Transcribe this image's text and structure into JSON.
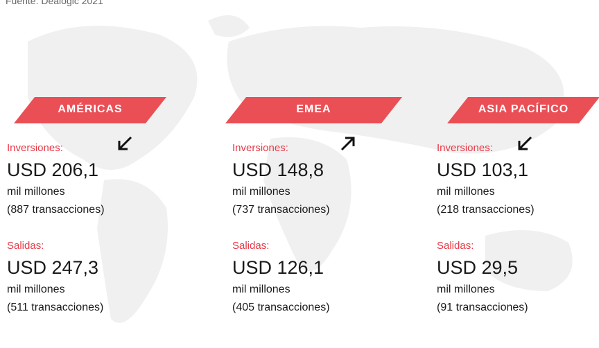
{
  "source": "Fuente: Dealogic 2021",
  "regions": [
    {
      "name": "AMÉRICAS",
      "in_label": "Inversiones:",
      "in_value": "USD 206,1",
      "in_unit": "mil millones",
      "in_deals": "(887 transacciones)",
      "out_label": "Salidas:",
      "out_value": "USD 247,3",
      "out_unit": "mil millones",
      "out_deals": "(511 transacciones)"
    },
    {
      "name": "EMEA",
      "in_label": "Inversiones:",
      "in_value": "USD 148,8",
      "in_unit": "mil millones",
      "in_deals": "(737 transacciones)",
      "out_label": "Salidas:",
      "out_value": "USD 126,1",
      "out_unit": "mil millones",
      "out_deals": "(405 transacciones)"
    },
    {
      "name": "ASIA PACÍFICO",
      "in_label": "Inversiones:",
      "in_value": "USD 103,1",
      "in_unit": "mil millones",
      "in_deals": "(218 transacciones)",
      "out_label": "Salidas:",
      "out_value": "USD 29,5",
      "out_unit": "mil millones",
      "out_deals": "(91 transacciones)"
    }
  ]
}
